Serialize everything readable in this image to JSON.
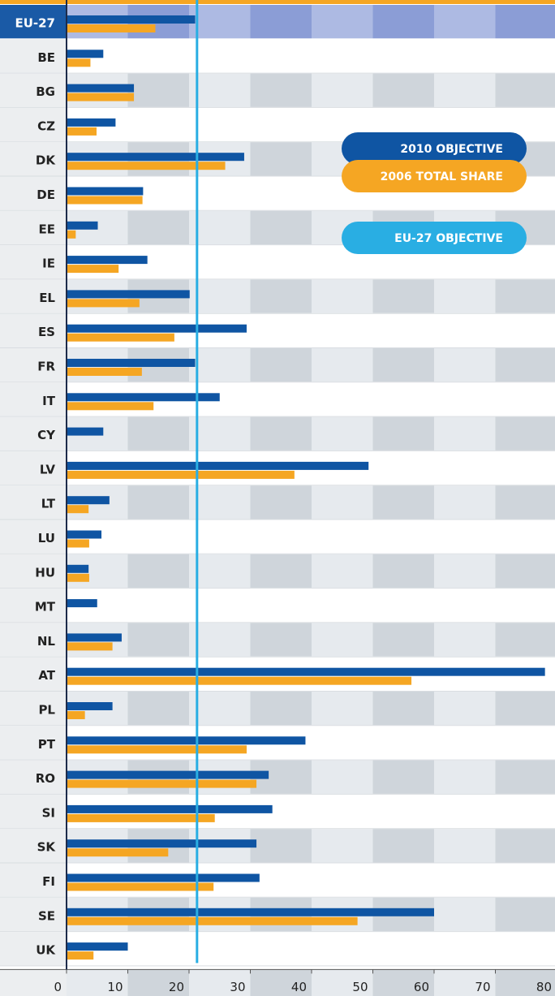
{
  "chart_data": {
    "type": "bar",
    "orientation": "horizontal",
    "categories": [
      "EU-27",
      "BE",
      "BG",
      "CZ",
      "DK",
      "DE",
      "EE",
      "IE",
      "EL",
      "ES",
      "FR",
      "IT",
      "CY",
      "LV",
      "LT",
      "LU",
      "HU",
      "MT",
      "NL",
      "AT",
      "PL",
      "PT",
      "RO",
      "SI",
      "SK",
      "FI",
      "SE",
      "UK"
    ],
    "series": [
      {
        "name": "2010 OBJECTIVE",
        "color": "#0f55a3",
        "values": [
          21,
          6,
          11,
          8,
          29,
          12.5,
          5.1,
          13.2,
          20.1,
          29.4,
          21,
          25,
          6,
          49.3,
          7,
          5.7,
          3.6,
          5,
          9,
          78.1,
          7.5,
          39,
          33,
          33.6,
          31,
          31.5,
          60,
          10
        ]
      },
      {
        "name": "2006 TOTAL SHARE",
        "color": "#f5a623",
        "values": [
          14.5,
          3.9,
          11,
          4.9,
          25.9,
          12.4,
          1.5,
          8.5,
          11.9,
          17.6,
          12.3,
          14.2,
          0,
          37.2,
          3.6,
          3.7,
          3.7,
          0,
          7.5,
          56.3,
          3,
          29.4,
          31,
          24.2,
          16.6,
          24,
          47.5,
          4.4
        ]
      }
    ],
    "reference": {
      "name": "EU-27 OBJECTIVE",
      "value": 21.3,
      "color": "#29aee3"
    },
    "xlim": [
      0,
      80
    ],
    "xticks": [
      0,
      10,
      20,
      30,
      40,
      50,
      60,
      70,
      80
    ]
  }
}
